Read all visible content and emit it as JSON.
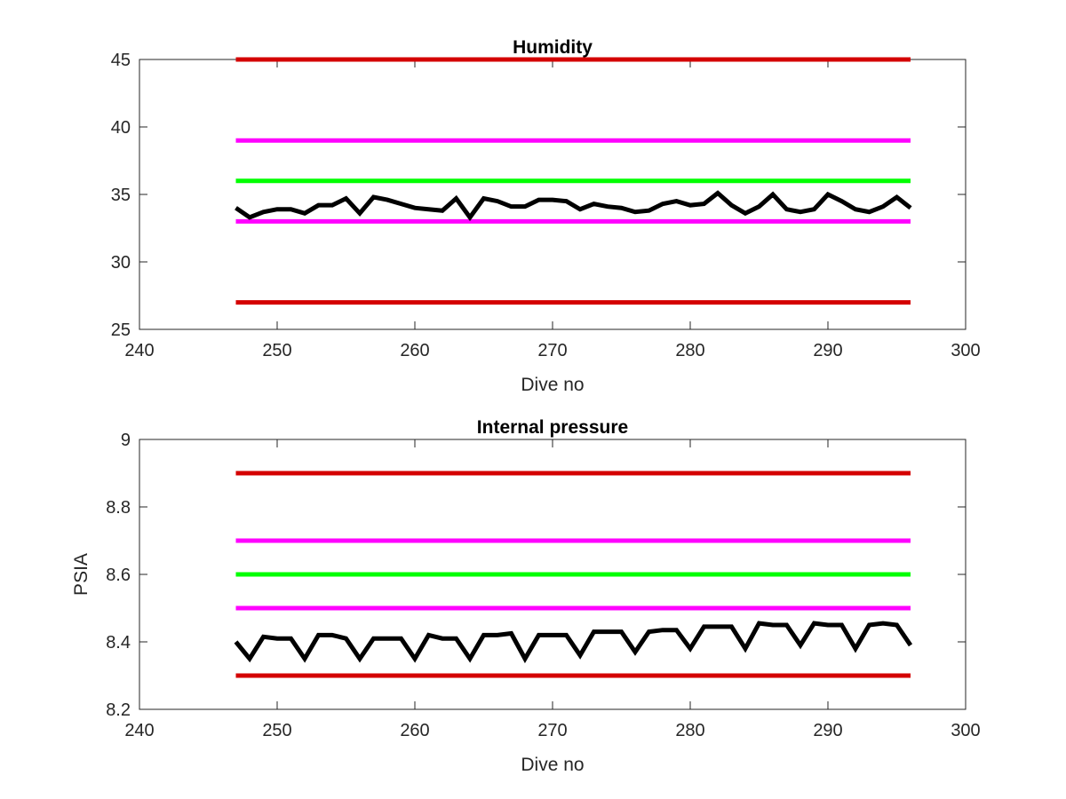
{
  "chart_data": [
    {
      "type": "line",
      "title": "Humidity",
      "xlabel": "Dive no",
      "ylabel": "",
      "xlim": [
        240,
        300
      ],
      "ylim": [
        25,
        45
      ],
      "xticks": [
        "240",
        "250",
        "260",
        "270",
        "280",
        "290",
        "300"
      ],
      "yticks": [
        "25",
        "30",
        "35",
        "40",
        "45"
      ],
      "grid": false,
      "threshold_lines": [
        {
          "y": 45,
          "x_range": [
            247,
            296
          ],
          "color": "#d40000"
        },
        {
          "y": 39,
          "x_range": [
            247,
            296
          ],
          "color": "#ff00ff"
        },
        {
          "y": 36,
          "x_range": [
            247,
            296
          ],
          "color": "#00ff00"
        },
        {
          "y": 33,
          "x_range": [
            247,
            296
          ],
          "color": "#ff00ff"
        },
        {
          "y": 27,
          "x_range": [
            247,
            296
          ],
          "color": "#d40000"
        }
      ],
      "series": [
        {
          "color": "#000000",
          "x": [
            247,
            248,
            249,
            250,
            251,
            252,
            253,
            254,
            255,
            256,
            257,
            258,
            259,
            260,
            261,
            262,
            263,
            264,
            265,
            266,
            267,
            268,
            269,
            270,
            271,
            272,
            273,
            274,
            275,
            276,
            277,
            278,
            279,
            280,
            281,
            282,
            283,
            284,
            285,
            286,
            287,
            288,
            289,
            290,
            291,
            292,
            293,
            294,
            295,
            296
          ],
          "values": [
            34.0,
            33.3,
            33.7,
            33.9,
            33.9,
            33.6,
            34.2,
            34.2,
            34.7,
            33.6,
            34.8,
            34.6,
            34.3,
            34.0,
            33.9,
            33.8,
            34.7,
            33.3,
            34.7,
            34.5,
            34.1,
            34.1,
            34.6,
            34.6,
            34.5,
            33.9,
            34.3,
            34.1,
            34.0,
            33.7,
            33.8,
            34.3,
            34.5,
            34.2,
            34.3,
            35.1,
            34.2,
            33.6,
            34.1,
            35.0,
            33.9,
            33.7,
            33.9,
            35.0,
            34.5,
            33.9,
            33.7,
            34.1,
            34.8,
            34.0
          ]
        }
      ]
    },
    {
      "type": "line",
      "title": "Internal pressure",
      "xlabel": "Dive no",
      "ylabel": "PSIA",
      "xlim": [
        240,
        300
      ],
      "ylim": [
        8.2,
        9
      ],
      "xticks": [
        "240",
        "250",
        "260",
        "270",
        "280",
        "290",
        "300"
      ],
      "yticks": [
        "8.2",
        "8.4",
        "8.6",
        "8.8",
        "9"
      ],
      "grid": false,
      "threshold_lines": [
        {
          "y": 8.9,
          "x_range": [
            247,
            296
          ],
          "color": "#d40000"
        },
        {
          "y": 8.7,
          "x_range": [
            247,
            296
          ],
          "color": "#ff00ff"
        },
        {
          "y": 8.6,
          "x_range": [
            247,
            296
          ],
          "color": "#00ff00"
        },
        {
          "y": 8.5,
          "x_range": [
            247,
            296
          ],
          "color": "#ff00ff"
        },
        {
          "y": 8.3,
          "x_range": [
            247,
            296
          ],
          "color": "#d40000"
        }
      ],
      "series": [
        {
          "color": "#000000",
          "x": [
            247,
            248,
            249,
            250,
            251,
            252,
            253,
            254,
            255,
            256,
            257,
            258,
            259,
            260,
            261,
            262,
            263,
            264,
            265,
            266,
            267,
            268,
            269,
            270,
            271,
            272,
            273,
            274,
            275,
            276,
            277,
            278,
            279,
            280,
            281,
            282,
            283,
            284,
            285,
            286,
            287,
            288,
            289,
            290,
            291,
            292,
            293,
            294,
            295,
            296
          ],
          "values": [
            8.4,
            8.35,
            8.415,
            8.41,
            8.41,
            8.35,
            8.42,
            8.42,
            8.41,
            8.35,
            8.41,
            8.41,
            8.41,
            8.35,
            8.42,
            8.41,
            8.41,
            8.35,
            8.42,
            8.42,
            8.425,
            8.35,
            8.42,
            8.42,
            8.42,
            8.36,
            8.43,
            8.43,
            8.43,
            8.37,
            8.43,
            8.435,
            8.435,
            8.38,
            8.445,
            8.445,
            8.445,
            8.38,
            8.455,
            8.45,
            8.45,
            8.39,
            8.455,
            8.45,
            8.45,
            8.38,
            8.45,
            8.455,
            8.45,
            8.39
          ]
        }
      ]
    }
  ]
}
